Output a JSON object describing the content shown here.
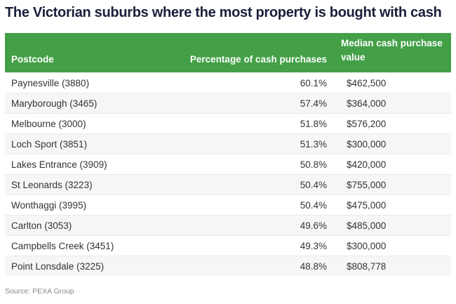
{
  "title": "The Victorian suburbs where the most property is bought with cash",
  "colors": {
    "header_bg": "#43a047",
    "title": "#1a1f3a"
  },
  "table": {
    "headers": [
      "Postcode",
      "Percentage of cash purchases",
      "Median cash purchase value"
    ],
    "rows": [
      [
        "Paynesville (3880)",
        "60.1%",
        "$462,500"
      ],
      [
        "Maryborough (3465)",
        "57.4%",
        "$364,000"
      ],
      [
        "Melbourne (3000)",
        "51.8%",
        "$576,200"
      ],
      [
        "Loch Sport (3851)",
        "51.3%",
        "$300,000"
      ],
      [
        "Lakes Entrance (3909)",
        "50.8%",
        "$420,000"
      ],
      [
        "St Leonards (3223)",
        "50.4%",
        "$755,000"
      ],
      [
        "Wonthaggi (3995)",
        "50.4%",
        "$475,000"
      ],
      [
        "Carlton (3053)",
        "49.6%",
        "$485,000"
      ],
      [
        "Campbells Creek (3451)",
        "49.3%",
        "$300,000"
      ],
      [
        "Point Lonsdale (3225)",
        "48.8%",
        "$808,778"
      ]
    ]
  },
  "source": "Source: PEXA Group"
}
